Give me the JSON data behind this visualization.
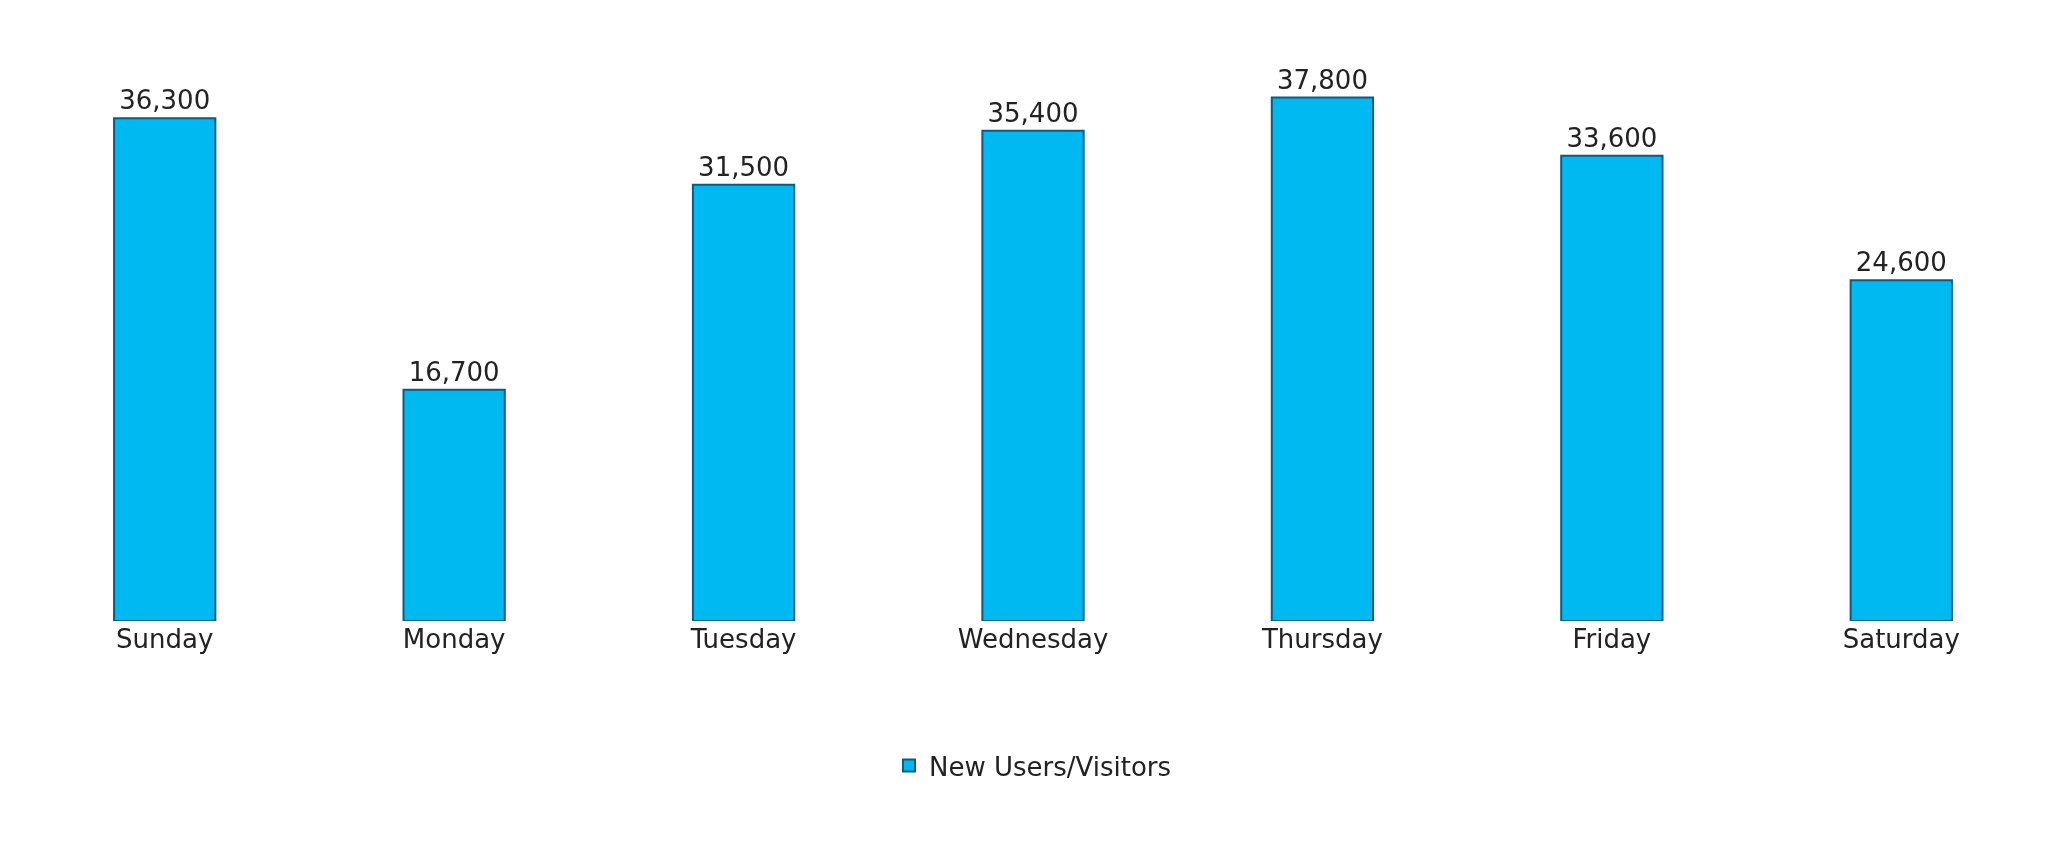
{
  "chart_data": {
    "type": "bar",
    "categories": [
      "Sunday",
      "Monday",
      "Tuesday",
      "Wednesday",
      "Thursday",
      "Friday",
      "Saturday"
    ],
    "series": [
      {
        "name": "New Users/Visitors",
        "color": "#00b9f1",
        "values": [
          36300,
          16700,
          31500,
          35400,
          37800,
          33600,
          24600
        ],
        "value_labels": [
          "36,300",
          "16,700",
          "31,500",
          "35,400",
          "37,800",
          "33,600",
          "24,600"
        ]
      }
    ],
    "grid": false,
    "legend": "bottom"
  }
}
